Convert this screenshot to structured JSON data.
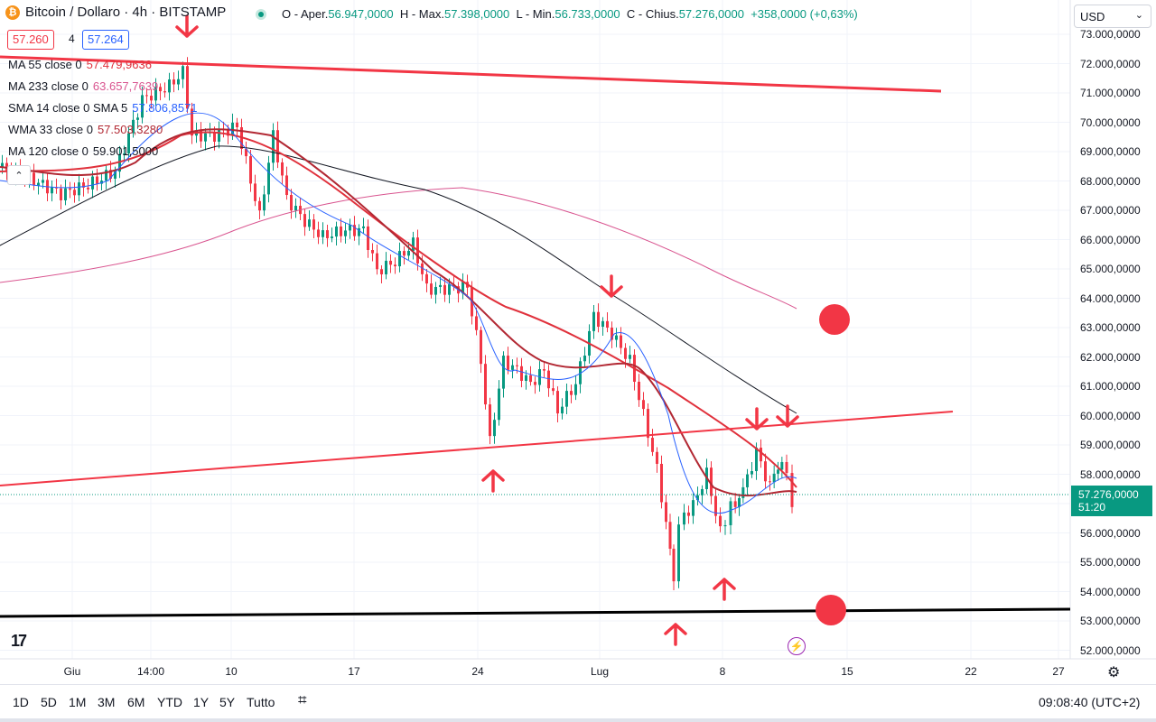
{
  "symbol": {
    "title": "Bitcoin / Dollaro · 4h · BITSTAMP",
    "logo_icon": "bitcoin-icon"
  },
  "ohlc": {
    "open_label": "O - Aper.",
    "open": "56.947,0000",
    "high_label": "H - Max.",
    "high": "57.398,0000",
    "low_label": "L - Min.",
    "low": "56.733,0000",
    "close_label": "C - Chius.",
    "close": "57.276,0000",
    "change": "+358,0000 (+0,63%)"
  },
  "order": {
    "sell": "57.260",
    "spread": "4",
    "buy": "57.264"
  },
  "indicators": [
    {
      "name": "MA 55 close 0",
      "value": "57.479,9636",
      "color": "#e0313c"
    },
    {
      "name": "MA 233 close 0",
      "value": "63.657,7639",
      "color": "#d9548f"
    },
    {
      "name": "SMA 14 close 0 SMA 5",
      "value": "57.806,8571",
      "color": "#2962ff"
    },
    {
      "name": "WMA 33 close 0",
      "value": "57.503,3280",
      "color": "#b22833"
    },
    {
      "name": "MA 120 close 0",
      "value": "59.901,5000",
      "color": "#131722"
    }
  ],
  "currency": "USD",
  "y_axis": [
    "73.000,0000",
    "72.000,0000",
    "71.000,0000",
    "70.000,0000",
    "69.000,0000",
    "68.000,0000",
    "67.000,0000",
    "66.000,0000",
    "65.000,0000",
    "64.000,0000",
    "63.000,0000",
    "62.000,0000",
    "61.000,0000",
    "60.000,0000",
    "59.000,0000",
    "58.000,0000",
    "57.000,0000",
    "56.000,0000",
    "55.000,0000",
    "54.000,0000",
    "53.000,0000",
    "52.000,0000"
  ],
  "x_axis": [
    "Giu",
    "14:00",
    "10",
    "17",
    "24",
    "Lug",
    "8",
    "15",
    "22",
    "27"
  ],
  "current_price": {
    "value": "57.276,0000",
    "countdown": "51:20"
  },
  "timeframes": [
    "1D",
    "5D",
    "1M",
    "3M",
    "6M",
    "YTD",
    "1Y",
    "5Y",
    "Tutto"
  ],
  "clock": "09:08:40 (UTC+2)",
  "colors": {
    "up": "#089981",
    "down": "#f23645",
    "annotation": "#f23645",
    "support": "#000000"
  }
}
